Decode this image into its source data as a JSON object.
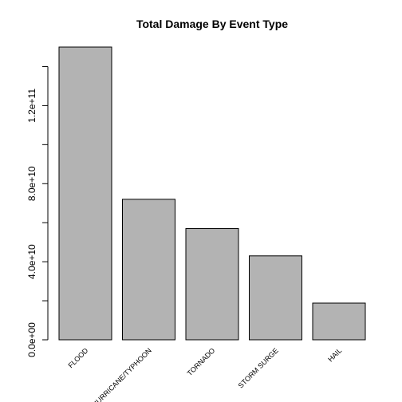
{
  "chart_data": {
    "type": "bar",
    "title": "Total Damage By Event Type",
    "xlabel": "",
    "ylabel": "",
    "categories": [
      "FLOOD",
      "HURRICANE/TYPHOON",
      "TORNADO",
      "STORM SURGE",
      "HAIL"
    ],
    "values": [
      150000000000,
      72000000000,
      57000000000,
      43000000000,
      18800000000
    ],
    "ylim": [
      0,
      150000000000
    ],
    "y_ticks": [
      0,
      20000000000,
      40000000000,
      60000000000,
      80000000000,
      100000000000,
      120000000000,
      140000000000
    ],
    "y_tick_labels": [
      "0.0e+00",
      "",
      "4.0e+10",
      "",
      "8.0e+10",
      "",
      "1.2e+11",
      ""
    ],
    "bar_color": "#b3b3b3",
    "grid": false,
    "legend": "none"
  }
}
